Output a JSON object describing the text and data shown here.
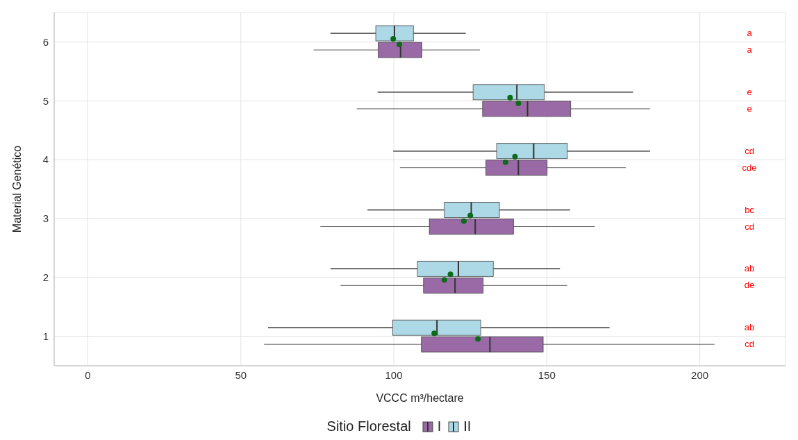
{
  "chart_data": {
    "type": "box",
    "orientation": "horizontal",
    "xlabel": "VCCC m³/hectare",
    "ylabel": "Material Genético",
    "legend_title": "Sitio Florestal",
    "legend": "bottom",
    "grid": true,
    "categories": [
      "6",
      "5",
      "4",
      "3",
      "2",
      "1"
    ],
    "xlim": [
      -11,
      228
    ],
    "xticks": [
      0,
      50,
      100,
      150,
      200
    ],
    "series": [
      {
        "name": "I",
        "color": "#9a6aa6",
        "value_labels": [
          "a",
          "e",
          "cde",
          "cd",
          "de",
          "cd"
        ],
        "boxes": [
          {
            "low": 73.8,
            "q1": 94.9,
            "median": 102.2,
            "q3": 109.2,
            "high": 128.1,
            "mean": 101.8
          },
          {
            "low": 87.9,
            "q1": 129,
            "median": 143.7,
            "q3": 157.8,
            "high": 183.7,
            "mean": 140.7
          },
          {
            "low": 102,
            "q1": 130.1,
            "median": 140.7,
            "q3": 150.1,
            "high": 175.8,
            "mean": 136.5
          },
          {
            "low": 76,
            "q1": 111.6,
            "median": 126.6,
            "q3": 139.1,
            "high": 165.7,
            "mean": 122.9
          },
          {
            "low": 82.6,
            "q1": 109.7,
            "median": 120,
            "q3": 129.2,
            "high": 156.7,
            "mean": 116.5
          },
          {
            "low": 57.6,
            "q1": 109,
            "median": 131.4,
            "q3": 148.8,
            "high": 204.8,
            "mean": 127.5
          }
        ]
      },
      {
        "name": "II",
        "color": "#add8e6",
        "value_labels": [
          "a",
          "e",
          "cd",
          "bc",
          "ab",
          "ab"
        ],
        "boxes": [
          {
            "low": 79.3,
            "q1": 94.1,
            "median": 100.2,
            "q3": 106.4,
            "high": 123.5,
            "mean": 99.8
          },
          {
            "low": 94.7,
            "q1": 125.9,
            "median": 140.2,
            "q3": 149.2,
            "high": 178.2,
            "mean": 138
          },
          {
            "low": 99.8,
            "q1": 133.6,
            "median": 145.7,
            "q3": 156.7,
            "high": 183.7,
            "mean": 139.6
          },
          {
            "low": 91.4,
            "q1": 116.5,
            "median": 125.3,
            "q3": 134.5,
            "high": 157.6,
            "mean": 125
          },
          {
            "low": 79.3,
            "q1": 107.7,
            "median": 121.1,
            "q3": 132.5,
            "high": 154.3,
            "mean": 118.5
          },
          {
            "low": 58.9,
            "q1": 99.6,
            "median": 114.1,
            "q3": 128.4,
            "high": 170.5,
            "mean": 113.2
          }
        ]
      }
    ]
  }
}
